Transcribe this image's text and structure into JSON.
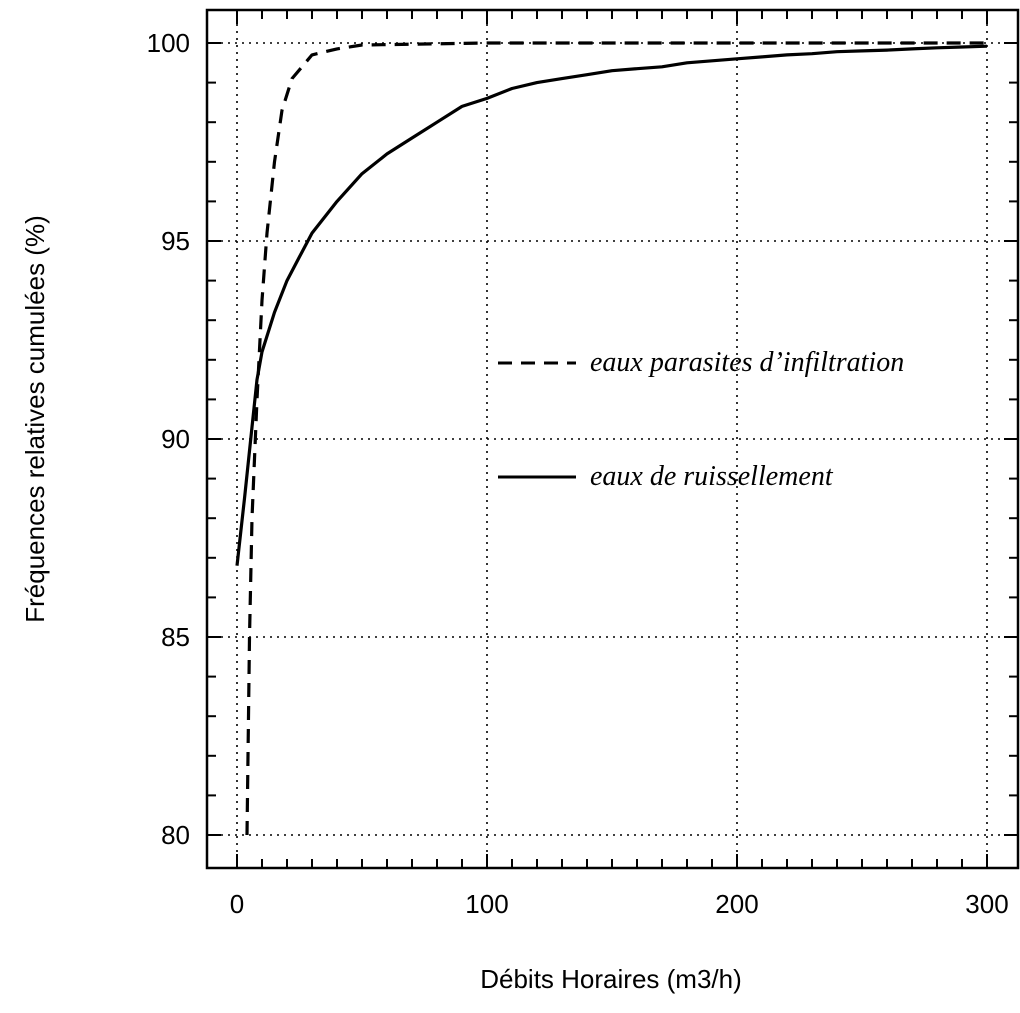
{
  "chart_data": {
    "type": "line",
    "title": "",
    "xlabel": "Débits Horaires (m3/h)",
    "ylabel": "Fréquences relatives cumulées (%)",
    "xlim": [
      0,
      300
    ],
    "ylim": [
      80,
      100
    ],
    "xticks": [
      0,
      100,
      200,
      300
    ],
    "yticks": [
      80,
      85,
      90,
      95,
      100
    ],
    "xtick_labels": [
      "0",
      "100",
      "200",
      "300"
    ],
    "ytick_labels": [
      "80",
      "85",
      "90",
      "95",
      "100"
    ],
    "grid": true,
    "legend_position": "center-right",
    "series": [
      {
        "name": "eaux parasites d’infiltration",
        "style": "dashed",
        "color": "#000000",
        "x": [
          4,
          5,
          6,
          8,
          10,
          12,
          15,
          18,
          22,
          26,
          30,
          40,
          50,
          100,
          200,
          300
        ],
        "y": [
          80,
          85,
          88,
          91,
          93.5,
          95.2,
          97,
          98.3,
          99.1,
          99.4,
          99.7,
          99.85,
          99.95,
          100,
          100,
          100
        ]
      },
      {
        "name": "eaux de ruissellement",
        "style": "solid",
        "color": "#000000",
        "x": [
          0,
          3,
          6,
          8,
          10,
          15,
          20,
          25,
          30,
          40,
          50,
          60,
          70,
          80,
          90,
          100,
          110,
          120,
          130,
          140,
          150,
          160,
          170,
          180,
          190,
          200,
          210,
          220,
          230,
          240,
          250,
          260,
          270,
          280,
          290,
          300
        ],
        "y": [
          86.8,
          88.5,
          90.3,
          91.5,
          92.2,
          93.2,
          94,
          94.6,
          95.2,
          96,
          96.7,
          97.2,
          97.6,
          98,
          98.4,
          98.6,
          98.85,
          99.0,
          99.1,
          99.2,
          99.3,
          99.35,
          99.4,
          99.5,
          99.55,
          99.6,
          99.65,
          99.7,
          99.73,
          99.78,
          99.8,
          99.82,
          99.85,
          99.88,
          99.9,
          99.92
        ]
      }
    ]
  }
}
